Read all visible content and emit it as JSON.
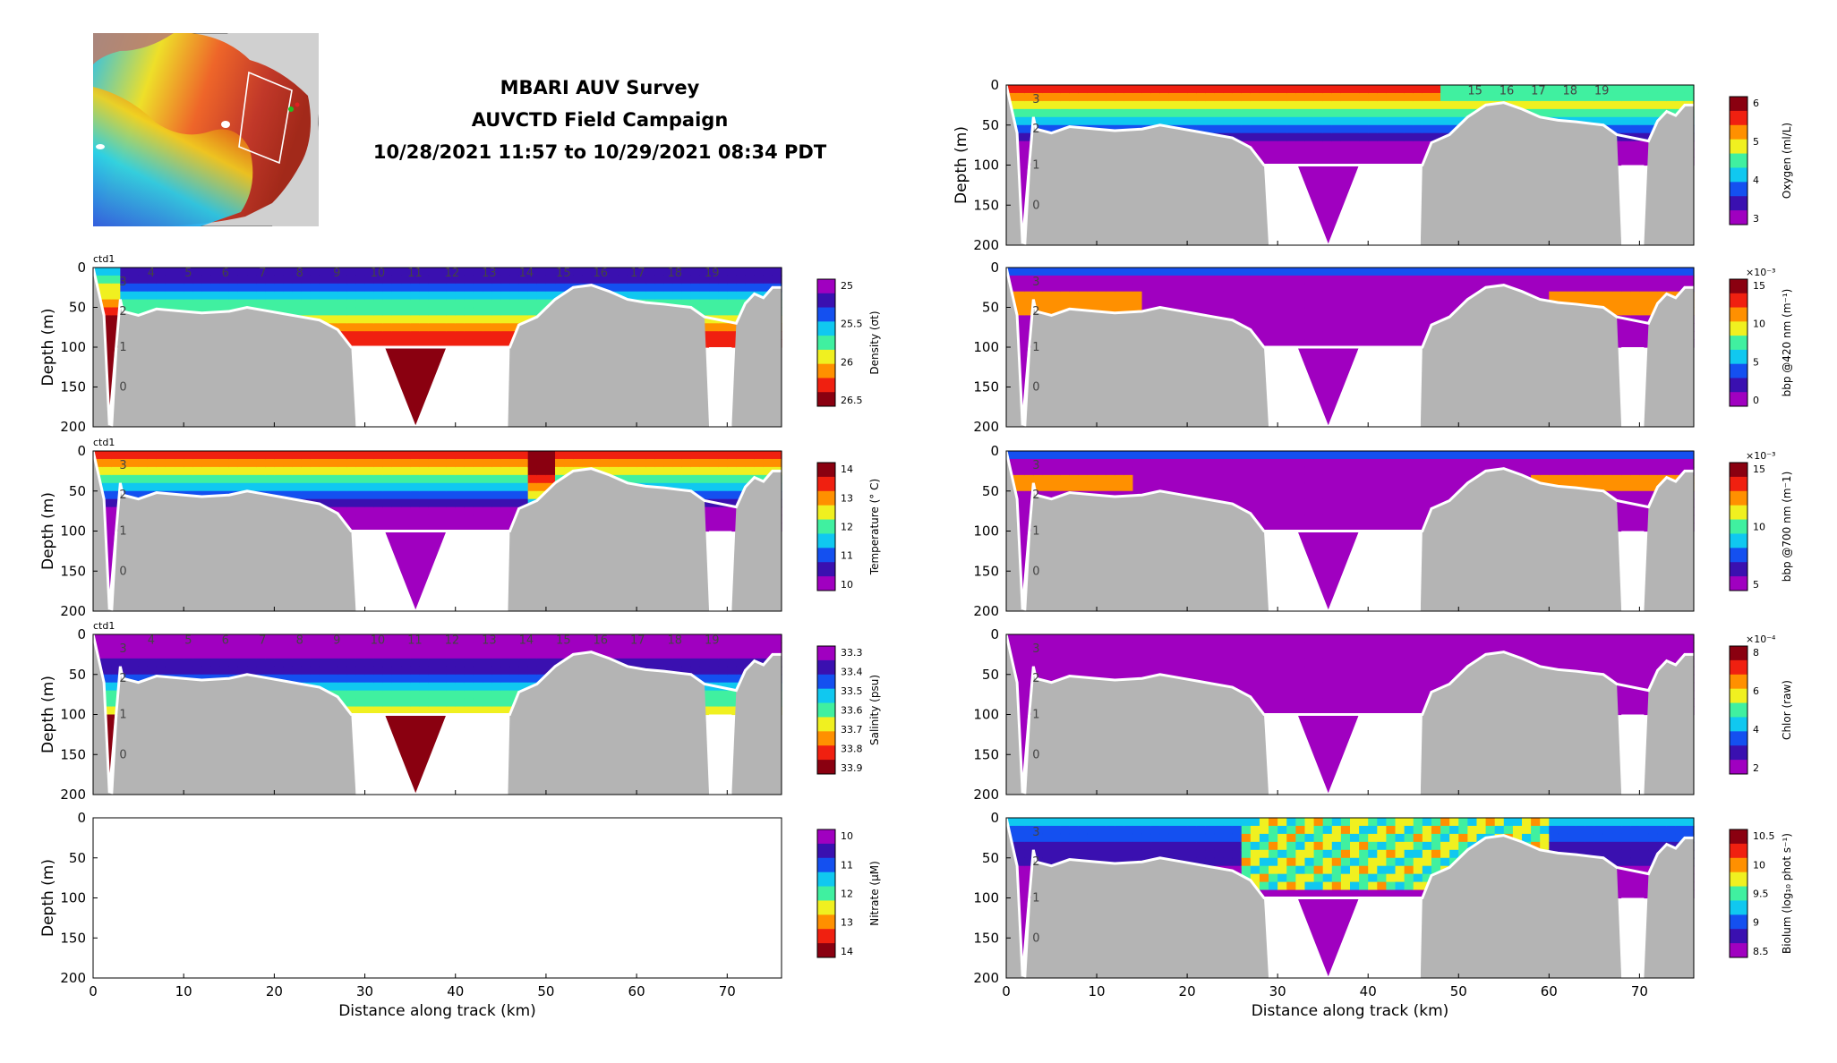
{
  "title": {
    "line1": "MBARI AUV Survey",
    "line2": "AUVCTD Field Campaign",
    "line3": "10/28/2021 11:57 to 10/29/2021 08:34 PDT"
  },
  "colors": {
    "bathymetry": "#b4b4b4",
    "colormap": [
      "#a000c0",
      "#3a10b0",
      "#1450f0",
      "#10c8f0",
      "#40f0a0",
      "#f0f020",
      "#ff9000",
      "#f02010",
      "#8a0010"
    ]
  },
  "chart_data": [
    {
      "id": "density",
      "type": "heatmap",
      "xlim": [
        0,
        76
      ],
      "ylim": [
        200,
        0
      ],
      "xlabel": "",
      "ylabel": "Depth (m)",
      "yticks": [
        "0",
        "50",
        "100",
        "150",
        "200"
      ],
      "xticks": [],
      "label": "ctd1",
      "colorbar_label": "Density (σt)",
      "colorbar_ticks": [
        "25",
        "25.5",
        "26",
        "26.5"
      ],
      "colorbar_exponent": "",
      "reversed": true,
      "profile_labels": [
        "3",
        "2",
        "1",
        "0"
      ],
      "station_labels": [
        "4",
        "5",
        "6",
        "7",
        "8",
        "9",
        "10",
        "11",
        "12",
        "13",
        "14",
        "15",
        "16",
        "17",
        "18",
        "19"
      ]
    },
    {
      "id": "temperature",
      "type": "heatmap",
      "xlim": [
        0,
        76
      ],
      "ylim": [
        200,
        0
      ],
      "xlabel": "",
      "ylabel": "Depth (m)",
      "yticks": [
        "0",
        "50",
        "100",
        "150",
        "200"
      ],
      "xticks": [],
      "label": "ctd1",
      "colorbar_label": "Temperature (° C)",
      "colorbar_ticks": [
        "14",
        "13",
        "12",
        "11",
        "10"
      ],
      "colorbar_exponent": "",
      "reversed": false,
      "profile_labels": [
        "3",
        "2",
        "1",
        "0"
      ],
      "station_labels": []
    },
    {
      "id": "salinity",
      "type": "heatmap",
      "xlim": [
        0,
        76
      ],
      "ylim": [
        200,
        0
      ],
      "xlabel": "",
      "ylabel": "Depth (m)",
      "yticks": [
        "0",
        "50",
        "100",
        "150",
        "200"
      ],
      "xticks": [],
      "label": "ctd1",
      "colorbar_label": "Salinity (psu)",
      "colorbar_ticks": [
        "33.3",
        "33.4",
        "33.5",
        "33.6",
        "33.7",
        "33.8",
        "33.9"
      ],
      "colorbar_exponent": "",
      "reversed": true,
      "profile_labels": [
        "3",
        "2",
        "1",
        "0"
      ],
      "station_labels": [
        "4",
        "5",
        "6",
        "7",
        "8",
        "9",
        "10",
        "11",
        "12",
        "13",
        "14",
        "15",
        "16",
        "17",
        "18",
        "19"
      ]
    },
    {
      "id": "nitrate",
      "type": "heatmap",
      "xlim": [
        0,
        76
      ],
      "ylim": [
        200,
        0
      ],
      "xlabel": "Distance along track (km)",
      "ylabel": "Depth (m)",
      "yticks": [
        "0",
        "50",
        "100",
        "150",
        "200"
      ],
      "xticks": [
        "0",
        "10",
        "20",
        "30",
        "40",
        "50",
        "60",
        "70"
      ],
      "label": "",
      "colorbar_label": "Nitrate (μM)",
      "colorbar_ticks": [
        "10",
        "11",
        "12",
        "13",
        "14"
      ],
      "colorbar_exponent": "",
      "reversed": true,
      "empty": true,
      "profile_labels": [],
      "station_labels": []
    },
    {
      "id": "oxygen",
      "type": "heatmap",
      "xlim": [
        0,
        76
      ],
      "ylim": [
        200,
        0
      ],
      "xlabel": "",
      "ylabel": "Depth (m)",
      "yticks": [
        "0",
        "50",
        "100",
        "150",
        "200"
      ],
      "xticks": [],
      "label": "",
      "colorbar_label": "Oxygen (ml/L)",
      "colorbar_ticks": [
        "6",
        "5",
        "4",
        "3"
      ],
      "colorbar_exponent": "",
      "reversed": false,
      "profile_labels": [
        "3",
        "2",
        "1",
        "0"
      ],
      "station_labels": [
        "15",
        "16",
        "17",
        "18",
        "19"
      ]
    },
    {
      "id": "bbp420",
      "type": "heatmap",
      "xlim": [
        0,
        76
      ],
      "ylim": [
        200,
        0
      ],
      "xlabel": "",
      "ylabel": "",
      "yticks": [
        "0",
        "50",
        "100",
        "150",
        "200"
      ],
      "xticks": [],
      "label": "",
      "colorbar_label": "bbp @420 nm (m⁻¹)",
      "colorbar_ticks": [
        "15",
        "10",
        "5",
        "0"
      ],
      "colorbar_exponent": "×10⁻³",
      "reversed": false,
      "profile_labels": [
        "3",
        "2",
        "1",
        "0"
      ],
      "station_labels": []
    },
    {
      "id": "bbp700",
      "type": "heatmap",
      "xlim": [
        0,
        76
      ],
      "ylim": [
        200,
        0
      ],
      "xlabel": "",
      "ylabel": "",
      "yticks": [
        "0",
        "50",
        "100",
        "150",
        "200"
      ],
      "xticks": [],
      "label": "",
      "colorbar_label": "bbp @700 nm (m⁻1)",
      "colorbar_ticks": [
        "15",
        "10",
        "5"
      ],
      "colorbar_exponent": "×10⁻³",
      "reversed": false,
      "profile_labels": [
        "3",
        "2",
        "1",
        "0"
      ],
      "station_labels": []
    },
    {
      "id": "chlor",
      "type": "heatmap",
      "xlim": [
        0,
        76
      ],
      "ylim": [
        200,
        0
      ],
      "xlabel": "",
      "ylabel": "",
      "yticks": [
        "0",
        "50",
        "100",
        "150",
        "200"
      ],
      "xticks": [],
      "label": "",
      "colorbar_label": "Chlor (raw)",
      "colorbar_ticks": [
        "8",
        "6",
        "4",
        "2"
      ],
      "colorbar_exponent": "×10⁻⁴",
      "reversed": false,
      "profile_labels": [
        "3",
        "2",
        "1",
        "0"
      ],
      "station_labels": []
    },
    {
      "id": "biolum",
      "type": "heatmap",
      "xlim": [
        0,
        76
      ],
      "ylim": [
        200,
        0
      ],
      "xlabel": "Distance along track (km)",
      "ylabel": "",
      "yticks": [
        "0",
        "50",
        "100",
        "150",
        "200"
      ],
      "xticks": [
        "0",
        "10",
        "20",
        "30",
        "40",
        "50",
        "60",
        "70"
      ],
      "label": "",
      "colorbar_label": "Biolum (log₁₀ phot s⁻¹)",
      "colorbar_ticks": [
        "10.5",
        "10",
        "9.5",
        "9",
        "8.5"
      ],
      "colorbar_exponent": "",
      "reversed": false,
      "profile_labels": [
        "3",
        "2",
        "1",
        "0"
      ],
      "station_labels": []
    }
  ]
}
